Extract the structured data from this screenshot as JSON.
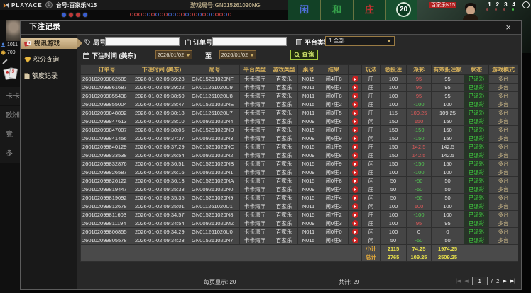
{
  "colors": {
    "header_gold": "#d8b25c",
    "win_red": "#e05a5a",
    "loss_green": "#52c852",
    "status_green": "#42d542",
    "total_yellow": "#e8e04a",
    "selected_tan": "#c4a878",
    "search_green": "#a6cc3f",
    "zone_blue": "#4f6fd8",
    "zone_green": "#35a04a",
    "zone_red": "#c23230"
  },
  "top_bar": {
    "logo_text": "PLAYACE",
    "badge": "1",
    "table_label": "台号:百家乐N15",
    "round_label": "游戏局号:GN015261020NG",
    "bet_zones": [
      "闲",
      "和",
      "庄"
    ],
    "timer": "20",
    "video_tag": "百家乐N15",
    "video_numbers": [
      "1",
      "2",
      "3",
      "4"
    ]
  },
  "roadmap": {
    "big_beads": [
      "b",
      "r",
      "r",
      "b"
    ],
    "beads": [
      "r",
      "r",
      "r",
      "r",
      "b",
      "r",
      "b",
      "r",
      "r",
      "b",
      "b",
      "r",
      "r",
      "b",
      "r",
      "r",
      "b",
      "r",
      "b",
      "b",
      "r",
      "r",
      "b",
      "r"
    ]
  },
  "left_panel": {
    "stat_user": "1011",
    "stat_balance": "709.",
    "menu_items": [
      "卡卡",
      "欧洲",
      "竞",
      "多"
    ]
  },
  "modal": {
    "title": "下注记录",
    "close": "×",
    "sidebar": [
      {
        "label": "视讯游戏"
      },
      {
        "label": "积分查询"
      },
      {
        "label": "额度记录"
      }
    ],
    "filters": {
      "round_label": "局号",
      "round_value": "",
      "order_label": "订单号",
      "order_value": "",
      "platform_label": "平台类型",
      "platform_value": "1.全部",
      "time_label": "下注时间 (美东)",
      "date_from": "2026/01/02",
      "to_label": "至",
      "date_to": "2026/01/02",
      "search_label": "查询"
    },
    "table": {
      "headers": [
        "订单号",
        "下注时间 (美东)",
        "局号",
        "平台类型",
        "游戏类型",
        "桌号",
        "结果",
        "",
        "玩法",
        "总投注",
        "派彩",
        "有效投注额",
        "状态",
        "游戏模式"
      ],
      "rows": [
        {
          "order": "260102099862589",
          "time": "2026-01-02 09:39:28",
          "round": "GN015261020NF",
          "platform": "卡卡湾厅",
          "game": "百家乐",
          "table": "N015",
          "result": "闲4庄8",
          "play": "庄",
          "bet": "100",
          "payout": "95",
          "valid": "95",
          "status": "已派彩",
          "mode": "多台"
        },
        {
          "order": "260102099861687",
          "time": "2026-01-02 09:39:22",
          "round": "GN011261020U9",
          "platform": "卡卡湾厅",
          "game": "百家乐",
          "table": "N011",
          "result": "闲6庄7",
          "play": "庄",
          "bet": "100",
          "payout": "95",
          "valid": "95",
          "status": "已派彩",
          "mode": "多台"
        },
        {
          "order": "260102099855438",
          "time": "2026-01-02 09:38:50",
          "round": "GN011261020U8",
          "platform": "卡卡湾厅",
          "game": "百家乐",
          "table": "N011",
          "result": "闲0庄8",
          "play": "庄",
          "bet": "100",
          "payout": "95",
          "valid": "95",
          "status": "已派彩",
          "mode": "多台"
        },
        {
          "order": "260102099855004",
          "time": "2026-01-02 09:38:47",
          "round": "GN015261020NE",
          "platform": "卡卡湾厅",
          "game": "百家乐",
          "table": "N015",
          "result": "闲7庄2",
          "play": "庄",
          "bet": "100",
          "payout": "-100",
          "valid": "100",
          "status": "已派彩",
          "mode": "多台"
        },
        {
          "order": "260102099848892",
          "time": "2026-01-02 09:38:18",
          "round": "GN011261020U7",
          "platform": "卡卡湾厅",
          "game": "百家乐",
          "table": "N011",
          "result": "闲3庄5",
          "play": "庄",
          "bet": "115",
          "payout": "109.25",
          "valid": "109.25",
          "status": "已派彩",
          "mode": "多台"
        },
        {
          "order": "260102099847613",
          "time": "2026-01-02 09:38:10",
          "round": "GN009261020N4",
          "platform": "卡卡湾厅",
          "game": "百家乐",
          "table": "N009",
          "result": "闲8庄6",
          "play": "闲",
          "bet": "150",
          "payout": "150",
          "valid": "150",
          "status": "已派彩",
          "mode": "多台"
        },
        {
          "order": "260102099847007",
          "time": "2026-01-02 09:38:05",
          "round": "GN015261020ND",
          "platform": "卡卡湾厅",
          "game": "百家乐",
          "table": "N015",
          "result": "闲8庄7",
          "play": "庄",
          "bet": "150",
          "payout": "-150",
          "valid": "150",
          "status": "已派彩",
          "mode": "多台"
        },
        {
          "order": "260102099841456",
          "time": "2026-01-02 09:37:37",
          "round": "GN009261020N3",
          "platform": "卡卡湾厅",
          "game": "百家乐",
          "table": "N009",
          "result": "闲6庄9",
          "play": "闲",
          "bet": "150",
          "payout": "-150",
          "valid": "150",
          "status": "已派彩",
          "mode": "多台"
        },
        {
          "order": "260102099840129",
          "time": "2026-01-02 09:37:29",
          "round": "GN015261020NC",
          "platform": "卡卡湾厅",
          "game": "百家乐",
          "table": "N015",
          "result": "闲1庄9",
          "play": "庄",
          "bet": "150",
          "payout": "142.5",
          "valid": "142.5",
          "status": "已派彩",
          "mode": "多台"
        },
        {
          "order": "260102099833538",
          "time": "2026-01-02 09:36:54",
          "round": "GN009261020N2",
          "platform": "卡卡湾厅",
          "game": "百家乐",
          "table": "N009",
          "result": "闲6庄8",
          "play": "庄",
          "bet": "150",
          "payout": "142.5",
          "valid": "142.5",
          "status": "已派彩",
          "mode": "多台"
        },
        {
          "order": "260102099832876",
          "time": "2026-01-02 09:36:51",
          "round": "GN015261020NB",
          "platform": "卡卡湾厅",
          "game": "百家乐",
          "table": "N015",
          "result": "闲6庄9",
          "play": "闲",
          "bet": "150",
          "payout": "-150",
          "valid": "150",
          "status": "已派彩",
          "mode": "多台"
        },
        {
          "order": "260102099826587",
          "time": "2026-01-02 09:36:16",
          "round": "GN009261020N1",
          "platform": "卡卡湾厅",
          "game": "百家乐",
          "table": "N009",
          "result": "闲8庄7",
          "play": "庄",
          "bet": "100",
          "payout": "-100",
          "valid": "100",
          "status": "已派彩",
          "mode": "多台"
        },
        {
          "order": "260102099826122",
          "time": "2026-01-02 09:36:13",
          "round": "GN015261020NA",
          "platform": "卡卡湾厅",
          "game": "百家乐",
          "table": "N015",
          "result": "闲0庄8",
          "play": "闲",
          "bet": "50",
          "payout": "-50",
          "valid": "50",
          "status": "已派彩",
          "mode": "多台"
        },
        {
          "order": "260102099819447",
          "time": "2026-01-02 09:35:38",
          "round": "GN009261020N0",
          "platform": "卡卡湾厅",
          "game": "百家乐",
          "table": "N009",
          "result": "闲9庄4",
          "play": "庄",
          "bet": "50",
          "payout": "-50",
          "valid": "50",
          "status": "已派彩",
          "mode": "多台"
        },
        {
          "order": "260102099819092",
          "time": "2026-01-02 09:35:35",
          "round": "GN015261020N9",
          "platform": "卡卡湾厅",
          "game": "百家乐",
          "table": "N015",
          "result": "闲2庄4",
          "play": "闲",
          "bet": "50",
          "payout": "-50",
          "valid": "50",
          "status": "已派彩",
          "mode": "多台"
        },
        {
          "order": "260102099812678",
          "time": "2026-01-02 09:35:01",
          "round": "GN011261020U1",
          "platform": "卡卡湾厅",
          "game": "百家乐",
          "table": "N011",
          "result": "闲3庄2",
          "play": "闲",
          "bet": "100",
          "payout": "100",
          "valid": "100",
          "status": "已派彩",
          "mode": "多台"
        },
        {
          "order": "260102099811603",
          "time": "2026-01-02 09:34:57",
          "round": "GN015261020N8",
          "platform": "卡卡湾厅",
          "game": "百家乐",
          "table": "N015",
          "result": "闲7庄2",
          "play": "庄",
          "bet": "100",
          "payout": "-100",
          "valid": "100",
          "status": "已派彩",
          "mode": "多台"
        },
        {
          "order": "260102099811194",
          "time": "2026-01-02 09:34:54",
          "round": "GN009261020MZ",
          "platform": "卡卡湾厅",
          "game": "百家乐",
          "table": "N009",
          "result": "闲0庄3",
          "play": "庄",
          "bet": "100",
          "payout": "95",
          "valid": "95",
          "status": "已派彩",
          "mode": "多台"
        },
        {
          "order": "260102099806855",
          "time": "2026-01-02 09:34:29",
          "round": "GN011261020U0",
          "platform": "卡卡湾厅",
          "game": "百家乐",
          "table": "N011",
          "result": "闲0庄0",
          "play": "闲",
          "bet": "100",
          "payout": "0",
          "valid": "0",
          "status": "已派彩",
          "mode": "多台"
        },
        {
          "order": "260102099805578",
          "time": "2026-01-02 09:34:23",
          "round": "GN015261020N7",
          "platform": "卡卡湾厅",
          "game": "百家乐",
          "table": "N015",
          "result": "闲4庄8",
          "play": "闲",
          "bet": "50",
          "payout": "-50",
          "valid": "50",
          "status": "已派彩",
          "mode": "多台"
        }
      ],
      "subtotal_label": "小计",
      "subtotal": {
        "bet": "2115",
        "payout": "74.25",
        "valid": "1974.25"
      },
      "total_label": "总计",
      "total": {
        "bet": "2765",
        "payout": "109.25",
        "valid": "2509.25"
      }
    },
    "pagination": {
      "per_page": "每页显示: 20",
      "total_count": "共计: 29",
      "first_icon": "|◀",
      "prev_icon": "◀",
      "page": "1",
      "page_sep": "/",
      "pages": "2",
      "next_icon": "▶",
      "last_icon": "▶|"
    }
  }
}
